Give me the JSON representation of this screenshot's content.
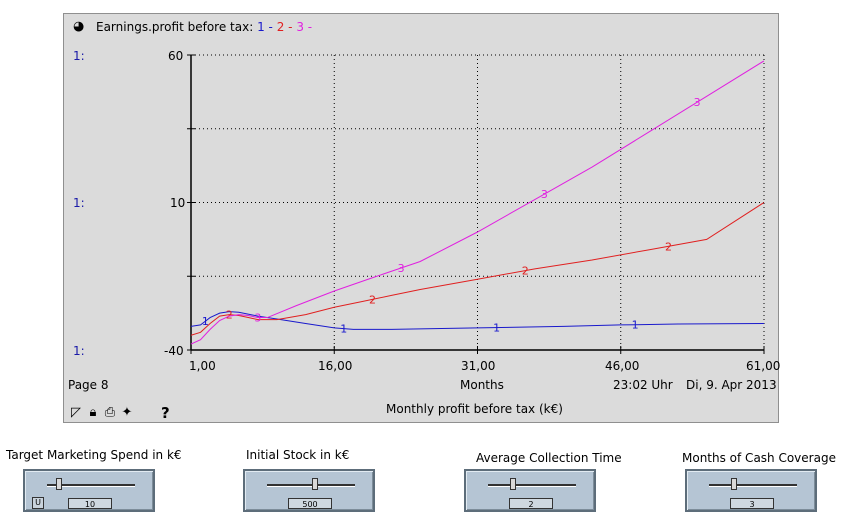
{
  "graph": {
    "title_prefix": "Earnings.profit before tax:",
    "legend": [
      {
        "label": "1",
        "color": "#1a1acc"
      },
      {
        "label": "2",
        "color": "#e02020"
      },
      {
        "label": "3",
        "color": "#e020e0"
      }
    ],
    "scale_labels": [
      "1:",
      "1:",
      "1:"
    ],
    "page": "Page 8",
    "time_label": "23:02 Uhr",
    "date_label": "Di, 9. Apr 2013",
    "subtitle": "Monthly profit before tax (k€)",
    "help_label": "?"
  },
  "chart_data": {
    "type": "line",
    "title": "Earnings.profit before tax",
    "xlabel": "Months",
    "ylabel": "Monthly profit before tax (k€)",
    "xlim": [
      1,
      61
    ],
    "ylim": [
      -40,
      60
    ],
    "x_ticks": [
      "1,00",
      "16,00",
      "31,00",
      "46,00",
      "61,00"
    ],
    "y_ticks": [
      "60",
      "10",
      "-40"
    ],
    "grid": true,
    "series": [
      {
        "name": "1",
        "color": "#1a1acc",
        "x": [
          1,
          2,
          3,
          4,
          5,
          6,
          8,
          10,
          13,
          16,
          18,
          22,
          31,
          40,
          46,
          52,
          61
        ],
        "y": [
          -32,
          -31.5,
          -29,
          -27.5,
          -27,
          -27.2,
          -28.5,
          -29.5,
          -31,
          -32.5,
          -33,
          -33,
          -32.5,
          -32,
          -31.5,
          -31.2,
          -31
        ],
        "label_x": [
          2.5,
          17,
          33,
          47.5
        ]
      },
      {
        "name": "2",
        "color": "#e02020",
        "x": [
          1,
          2,
          3,
          4,
          5,
          6,
          7,
          8,
          10,
          13,
          16,
          19,
          22,
          25,
          31,
          37,
          43,
          49,
          55,
          61
        ],
        "y": [
          -35,
          -34,
          -31,
          -28.5,
          -28,
          -28.3,
          -29,
          -29.7,
          -29.7,
          -28,
          -25.5,
          -23.5,
          -21.5,
          -19.5,
          -16,
          -12.5,
          -9.5,
          -6,
          -2.5,
          10
        ],
        "label_x": [
          5,
          20,
          36,
          51
        ]
      },
      {
        "name": "3",
        "color": "#e020e0",
        "x": [
          1,
          2,
          3,
          4,
          5,
          6,
          7,
          8,
          9,
          12,
          16,
          20,
          25,
          31,
          37,
          43,
          49,
          55,
          61
        ],
        "y": [
          -38,
          -36.5,
          -33,
          -30,
          -28.5,
          -28,
          -28.3,
          -29,
          -29,
          -25,
          -20,
          -15.5,
          -10,
          0,
          11,
          22,
          34,
          46,
          58
        ],
        "label_x": [
          8,
          23,
          38,
          54
        ]
      }
    ]
  },
  "sliders": [
    {
      "label": "Target Marketing Spend in k€",
      "value": "10",
      "fraction": 0.11,
      "show_u": true,
      "u_label": "U"
    },
    {
      "label": "Initial Stock in k€",
      "value": "500",
      "fraction": 0.55,
      "show_u": false
    },
    {
      "label": "Average Collection Time",
      "value": "2",
      "fraction": 0.27,
      "show_u": false
    },
    {
      "label": "Months of Cash Coverage",
      "value": "3",
      "fraction": 0.27,
      "show_u": false
    }
  ]
}
